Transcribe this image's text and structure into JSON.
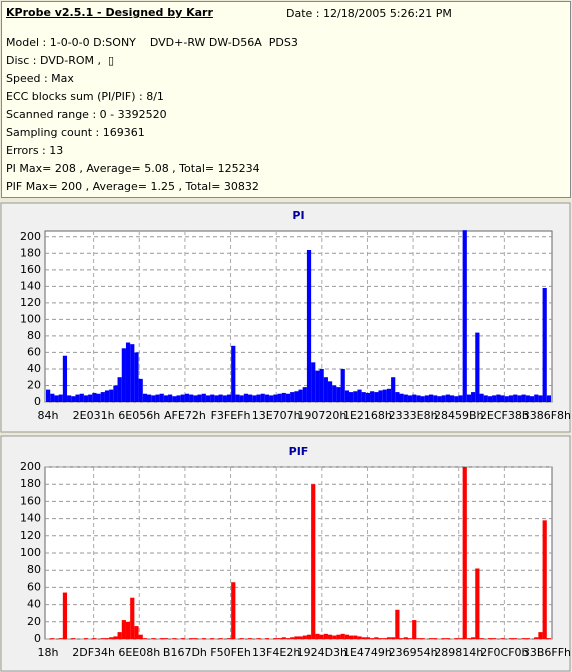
{
  "header": {
    "title": "KProbe v2.5.1 - Designed by Karr",
    "date": "Date : 12/18/2005 5:26:21 PM",
    "lines": [
      "Model : 1-0-0-0 D:SONY    DVD+-RW DW-D56A  PDS3",
      "Disc : DVD-ROM ,  ▯",
      "Speed : Max",
      "ECC blocks sum (PI/PIF) : 8/1",
      "Scanned range : 0 - 3392520",
      "Sampling count : 169361",
      "Errors : 13",
      "PI Max= 208 , Average= 5.08 , Total= 125234",
      "PIF Max= 200 , Average= 1.25 , Total= 30832"
    ]
  },
  "chart_data": [
    {
      "type": "bar",
      "title": "PI",
      "color": "#0000ff",
      "grid": true,
      "ylim": [
        0,
        207
      ],
      "yticks": [
        0,
        20,
        40,
        60,
        80,
        100,
        120,
        140,
        160,
        180,
        200
      ],
      "xticks": [
        "84h",
        "2E031h",
        "6E056h",
        "AFE72h",
        "F3FEFh",
        "13E707h",
        "190720h",
        "1E2168h",
        "2333E8h",
        "28459Bh",
        "2ECF38h",
        "3386F8h"
      ],
      "values": [
        15,
        10,
        8,
        9,
        56,
        8,
        7,
        9,
        10,
        8,
        9,
        11,
        10,
        12,
        14,
        15,
        20,
        30,
        65,
        72,
        70,
        60,
        28,
        10,
        9,
        8,
        9,
        10,
        8,
        9,
        7,
        8,
        9,
        10,
        9,
        8,
        9,
        10,
        8,
        9,
        8,
        9,
        8,
        9,
        68,
        9,
        8,
        10,
        9,
        8,
        9,
        10,
        9,
        8,
        9,
        10,
        11,
        10,
        12,
        13,
        15,
        18,
        184,
        48,
        38,
        40,
        30,
        25,
        20,
        18,
        40,
        14,
        12,
        13,
        15,
        12,
        11,
        13,
        12,
        14,
        15,
        16,
        30,
        12,
        10,
        9,
        8,
        9,
        8,
        7,
        8,
        9,
        8,
        7,
        8,
        9,
        8,
        7,
        8,
        208,
        9,
        12,
        84,
        10,
        8,
        7,
        8,
        9,
        8,
        7,
        8,
        9,
        8,
        9,
        8,
        7,
        9,
        8,
        138,
        8
      ]
    },
    {
      "type": "bar",
      "title": "PIF",
      "color": "#ff0000",
      "grid": true,
      "ylim": [
        0,
        200
      ],
      "yticks": [
        0,
        20,
        40,
        60,
        80,
        100,
        120,
        140,
        160,
        180,
        200
      ],
      "xticks": [
        "18h",
        "2DF34h",
        "6EE08h",
        "B167Dh",
        "F50FEh",
        "13F4E2h",
        "1924D3h",
        "1E4749h",
        "236954h",
        "289814h",
        "2F0CF0h",
        "33B6FFh"
      ],
      "values": [
        0,
        1,
        0,
        1,
        54,
        0,
        1,
        0,
        0,
        1,
        0,
        1,
        0,
        1,
        1,
        2,
        3,
        8,
        22,
        20,
        48,
        15,
        5,
        1,
        0,
        1,
        0,
        1,
        1,
        0,
        1,
        0,
        1,
        0,
        1,
        1,
        0,
        1,
        0,
        1,
        0,
        1,
        0,
        1,
        66,
        0,
        1,
        0,
        1,
        0,
        1,
        0,
        1,
        0,
        1,
        1,
        2,
        1,
        2,
        3,
        3,
        4,
        5,
        180,
        6,
        5,
        6,
        5,
        4,
        5,
        6,
        5,
        4,
        4,
        3,
        2,
        2,
        1,
        2,
        1,
        1,
        2,
        2,
        34,
        1,
        2,
        1,
        22,
        1,
        1,
        0,
        1,
        1,
        0,
        1,
        1,
        0,
        1,
        1,
        200,
        1,
        2,
        82,
        1,
        0,
        1,
        1,
        0,
        1,
        0,
        1,
        1,
        0,
        1,
        1,
        0,
        2,
        8,
        138,
        1
      ]
    }
  ]
}
